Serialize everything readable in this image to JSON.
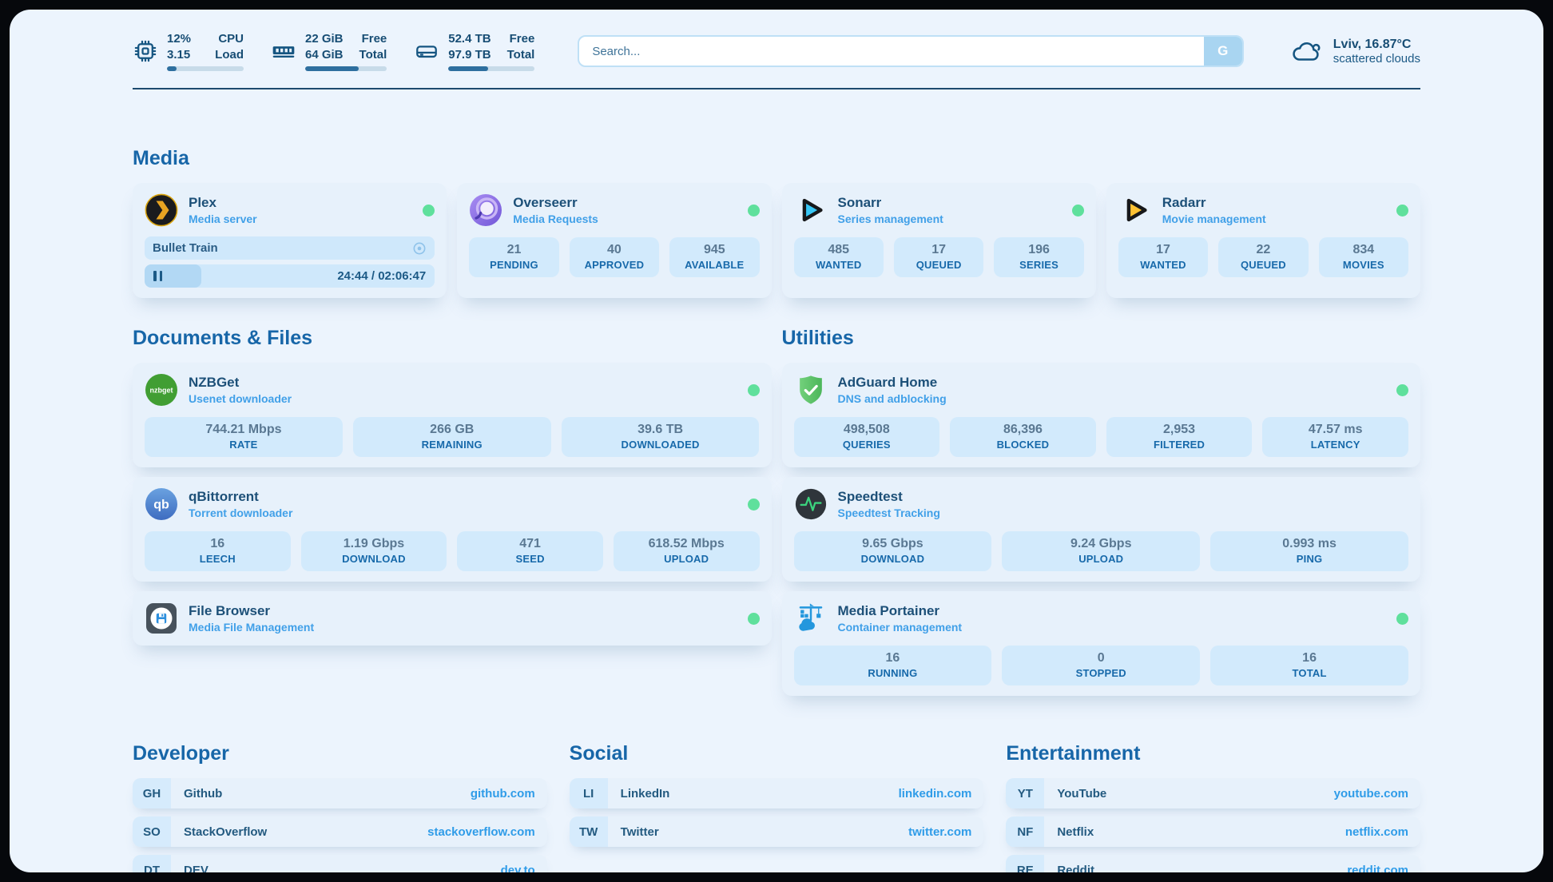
{
  "colors": {
    "accent_blue": "#1766a8",
    "link_blue": "#41a0e8",
    "navy": "#1d5078",
    "status_green": "#5fe09c",
    "chip_bg": "#d2eafc"
  },
  "header": {
    "stats": [
      {
        "icon": "cpu-icon",
        "value_top": "12%",
        "value_bottom": "3.15",
        "label_top": "CPU",
        "label_bottom": "Load",
        "progress": 12
      },
      {
        "icon": "ram-icon",
        "value_top": "22 GiB",
        "value_bottom": "64 GiB",
        "label_top": "Free",
        "label_bottom": "Total",
        "progress": 66
      },
      {
        "icon": "disk-icon",
        "value_top": "52.4 TB",
        "value_bottom": "97.9 TB",
        "label_top": "Free",
        "label_bottom": "Total",
        "progress": 46
      }
    ],
    "search": {
      "placeholder": "Search...",
      "button_label": "G"
    },
    "weather": {
      "icon": "cloud-icon",
      "location": "Lviv, 16.87°C",
      "condition": "scattered clouds"
    }
  },
  "sections": {
    "media": {
      "title": "Media",
      "cards": [
        {
          "icon": "plex-icon",
          "name": "Plex",
          "subtitle": "Media server",
          "online": true,
          "media": {
            "title": "Bullet Train",
            "time_display": "24:44 / 02:06:47",
            "progress": 19.5
          }
        },
        {
          "icon": "overseerr-icon",
          "name": "Overseerr",
          "subtitle": "Media Requests",
          "online": true,
          "stats": [
            {
              "value": "21",
              "label": "PENDING"
            },
            {
              "value": "40",
              "label": "APPROVED"
            },
            {
              "value": "945",
              "label": "AVAILABLE"
            }
          ]
        },
        {
          "icon": "sonarr-icon",
          "name": "Sonarr",
          "subtitle": "Series management",
          "online": true,
          "stats": [
            {
              "value": "485",
              "label": "WANTED"
            },
            {
              "value": "17",
              "label": "QUEUED"
            },
            {
              "value": "196",
              "label": "SERIES"
            }
          ]
        },
        {
          "icon": "radarr-icon",
          "name": "Radarr",
          "subtitle": "Movie management",
          "online": true,
          "stats": [
            {
              "value": "17",
              "label": "WANTED"
            },
            {
              "value": "22",
              "label": "QUEUED"
            },
            {
              "value": "834",
              "label": "MOVIES"
            }
          ]
        }
      ]
    },
    "documents": {
      "title": "Documents & Files",
      "cards": [
        {
          "icon": "nzbget-icon",
          "name": "NZBGet",
          "subtitle": "Usenet downloader",
          "online": true,
          "stats": [
            {
              "value": "744.21 Mbps",
              "label": "RATE"
            },
            {
              "value": "266 GB",
              "label": "REMAINING"
            },
            {
              "value": "39.6 TB",
              "label": "DOWNLOADED"
            }
          ]
        },
        {
          "icon": "qbittorrent-icon",
          "name": "qBittorrent",
          "subtitle": "Torrent downloader",
          "online": true,
          "stats": [
            {
              "value": "16",
              "label": "LEECH"
            },
            {
              "value": "1.19 Gbps",
              "label": "DOWNLOAD"
            },
            {
              "value": "471",
              "label": "SEED"
            },
            {
              "value": "618.52 Mbps",
              "label": "UPLOAD"
            }
          ]
        },
        {
          "icon": "filebrowser-icon",
          "name": "File Browser",
          "subtitle": "Media File Management",
          "online": true
        }
      ]
    },
    "utilities": {
      "title": "Utilities",
      "cards": [
        {
          "icon": "adguard-icon",
          "name": "AdGuard Home",
          "subtitle": "DNS and adblocking",
          "online": true,
          "stats": [
            {
              "value": "498,508",
              "label": "QUERIES"
            },
            {
              "value": "86,396",
              "label": "BLOCKED"
            },
            {
              "value": "2,953",
              "label": "FILTERED"
            },
            {
              "value": "47.57 ms",
              "label": "LATENCY"
            }
          ]
        },
        {
          "icon": "speedtest-icon",
          "name": "Speedtest",
          "subtitle": "Speedtest Tracking",
          "online": false,
          "stats": [
            {
              "value": "9.65 Gbps",
              "label": "DOWNLOAD"
            },
            {
              "value": "9.24 Gbps",
              "label": "UPLOAD"
            },
            {
              "value": "0.993 ms",
              "label": "PING"
            }
          ]
        },
        {
          "icon": "portainer-icon",
          "name": "Media Portainer",
          "subtitle": "Container management",
          "online": true,
          "stats": [
            {
              "value": "16",
              "label": "RUNNING"
            },
            {
              "value": "0",
              "label": "STOPPED"
            },
            {
              "value": "16",
              "label": "TOTAL"
            }
          ]
        }
      ]
    },
    "bookmarks": [
      {
        "title": "Developer",
        "items": [
          {
            "abbr": "GH",
            "name": "Github",
            "url": "github.com"
          },
          {
            "abbr": "SO",
            "name": "StackOverflow",
            "url": "stackoverflow.com"
          },
          {
            "abbr": "DT",
            "name": "DEV",
            "url": "dev.to"
          }
        ]
      },
      {
        "title": "Social",
        "items": [
          {
            "abbr": "LI",
            "name": "LinkedIn",
            "url": "linkedin.com"
          },
          {
            "abbr": "TW",
            "name": "Twitter",
            "url": "twitter.com"
          }
        ]
      },
      {
        "title": "Entertainment",
        "items": [
          {
            "abbr": "YT",
            "name": "YouTube",
            "url": "youtube.com"
          },
          {
            "abbr": "NF",
            "name": "Netflix",
            "url": "netflix.com"
          },
          {
            "abbr": "RE",
            "name": "Reddit",
            "url": "reddit.com"
          }
        ]
      }
    ]
  }
}
